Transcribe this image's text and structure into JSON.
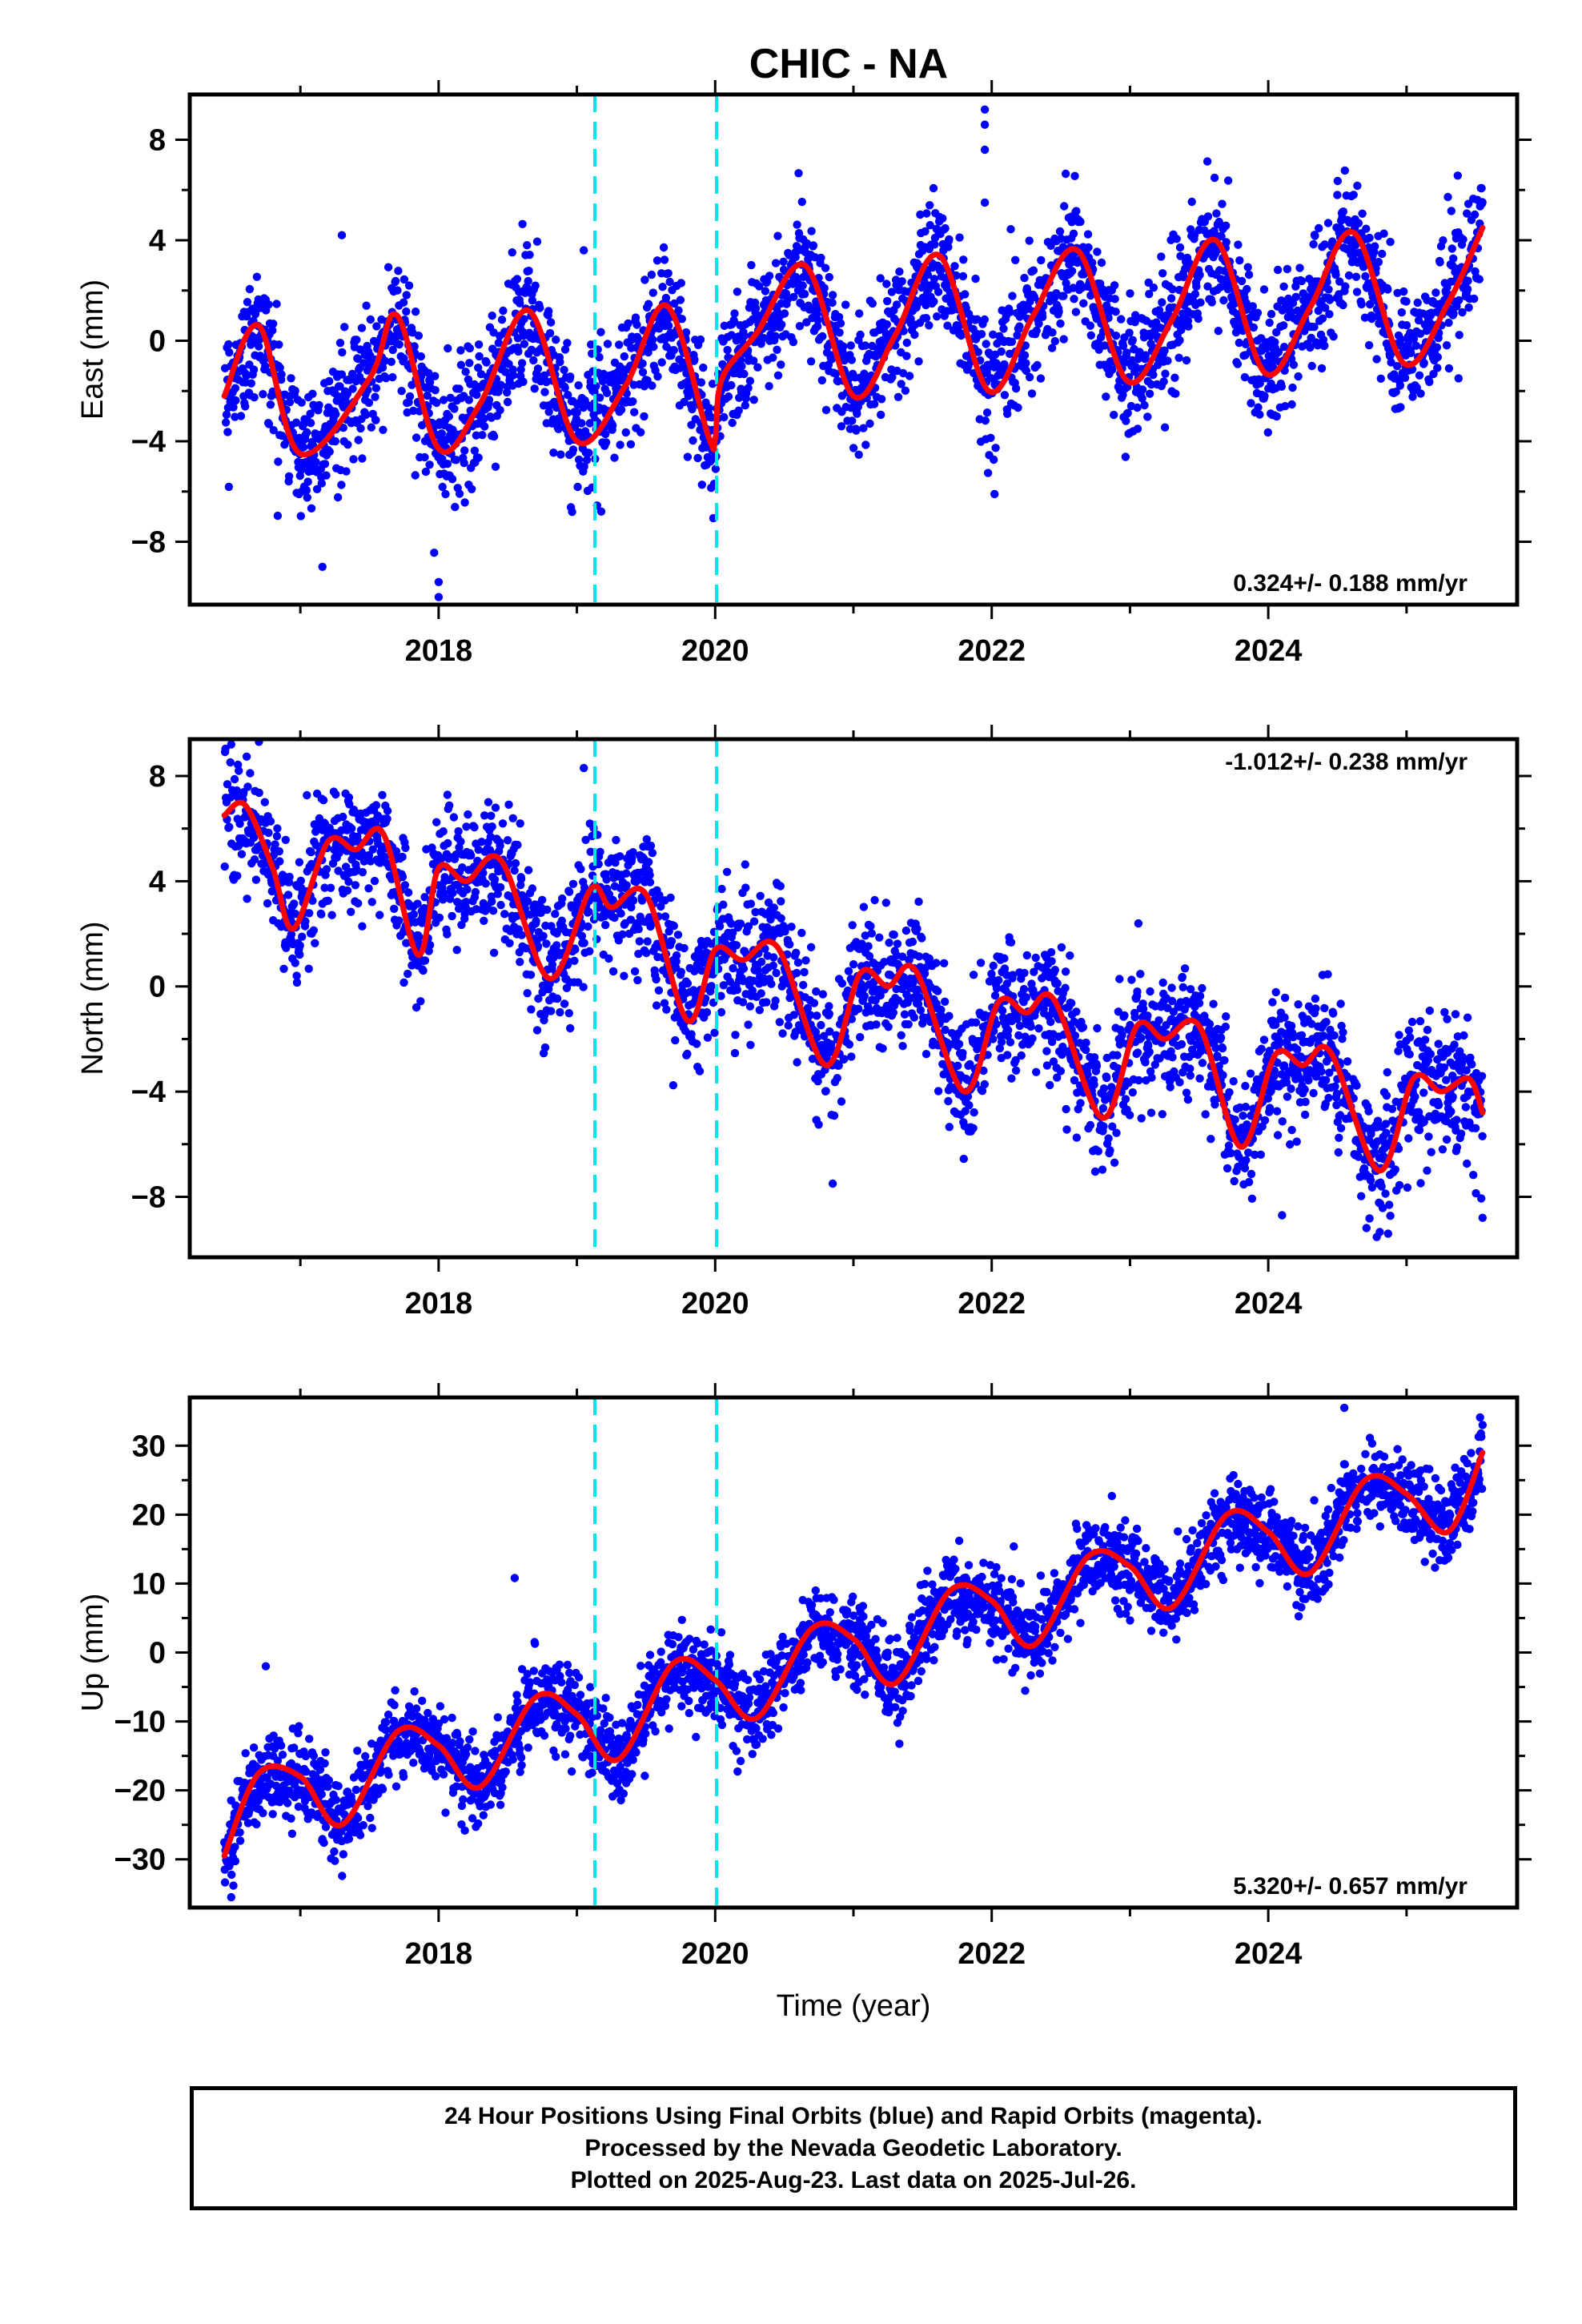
{
  "chart_data": [
    {
      "type": "scatter",
      "title": "CHIC - NA",
      "ylabel": "East (mm)",
      "xlabel": "",
      "xlim": [
        2016.2,
        2025.8
      ],
      "ylim": [
        -10.5,
        9.8
      ],
      "x_ticks": [
        2018,
        2020,
        2022,
        2024
      ],
      "y_ticks": [
        -8,
        -4,
        0,
        4,
        8
      ],
      "y_tick_labels": [
        "−8",
        "−4",
        "0",
        "4",
        "8"
      ],
      "rate_label": "0.324+/- 0.188 mm/yr",
      "rate_position": "bottom-right",
      "reference_lines_x": [
        2019.13,
        2020.01
      ],
      "trend": {
        "start": 2016.45,
        "value_at_start": -2.2,
        "rate": 0.324
      },
      "seasonal_amplitude": 2.6,
      "seasonal_phase_peak": 0.62,
      "scatter": 1.3,
      "model_points": [
        [
          2016.45,
          -2.2
        ],
        [
          2016.7,
          0.6
        ],
        [
          2017.0,
          -4.5
        ],
        [
          2017.5,
          -1.5
        ],
        [
          2017.7,
          1.0
        ],
        [
          2018.0,
          -4.3
        ],
        [
          2018.3,
          -2.5
        ],
        [
          2018.65,
          1.2
        ],
        [
          2019.0,
          -4.0
        ],
        [
          2019.35,
          -1.8
        ],
        [
          2019.65,
          1.4
        ],
        [
          2019.95,
          -3.8
        ],
        [
          2020.0,
          -3.9
        ],
        [
          2020.05,
          -1.5
        ],
        [
          2020.3,
          0.3
        ],
        [
          2020.65,
          3.0
        ],
        [
          2021.0,
          -2.2
        ],
        [
          2021.3,
          0.2
        ],
        [
          2021.62,
          3.4
        ],
        [
          2021.98,
          -2.0
        ],
        [
          2022.3,
          1.0
        ],
        [
          2022.62,
          3.6
        ],
        [
          2022.98,
          -1.6
        ],
        [
          2023.3,
          0.8
        ],
        [
          2023.62,
          4.0
        ],
        [
          2023.98,
          -1.3
        ],
        [
          2024.3,
          1.3
        ],
        [
          2024.62,
          4.3
        ],
        [
          2024.98,
          -0.9
        ],
        [
          2025.3,
          1.5
        ],
        [
          2025.55,
          4.5
        ]
      ],
      "point_color": "#0000ff",
      "model_color": "#ff0000",
      "reference_line_color": "#00e5ee",
      "outliers": [
        [
          2021.95,
          9.2
        ],
        [
          2021.95,
          8.6
        ],
        [
          2021.95,
          7.6
        ],
        [
          2021.95,
          5.5
        ],
        [
          2018.0,
          -9.6
        ],
        [
          2018.0,
          -10.2
        ],
        [
          2019.05,
          3.6
        ],
        [
          2022.02,
          -6.1
        ],
        [
          2017.3,
          4.2
        ]
      ]
    },
    {
      "type": "scatter",
      "title": "",
      "ylabel": "North (mm)",
      "xlabel": "",
      "xlim": [
        2016.2,
        2025.8
      ],
      "ylim": [
        -10.3,
        9.4
      ],
      "x_ticks": [
        2018,
        2020,
        2022,
        2024
      ],
      "y_ticks": [
        -8,
        -4,
        0,
        4,
        8
      ],
      "y_tick_labels": [
        "−8",
        "−4",
        "0",
        "4",
        "8"
      ],
      "rate_label": "-1.012+/- 0.238 mm/yr",
      "rate_position": "top-right",
      "reference_lines_x": [
        2019.13,
        2020.01
      ],
      "trend": {
        "start": 2016.45,
        "value_at_start": 6.5,
        "rate": -1.012
      },
      "seasonal_amplitude": 1.8,
      "seasonal_phase_peak": 0.45,
      "scatter": 1.2,
      "model_points": [
        [
          2016.45,
          6.5
        ],
        [
          2016.6,
          6.9
        ],
        [
          2016.8,
          4.5
        ],
        [
          2016.95,
          2.2
        ],
        [
          2017.2,
          5.5
        ],
        [
          2017.4,
          5.2
        ],
        [
          2017.6,
          5.8
        ],
        [
          2017.85,
          1.2
        ],
        [
          2018.0,
          4.5
        ],
        [
          2018.2,
          4.0
        ],
        [
          2018.45,
          4.8
        ],
        [
          2018.8,
          0.3
        ],
        [
          2019.1,
          3.7
        ],
        [
          2019.25,
          3.0
        ],
        [
          2019.5,
          3.5
        ],
        [
          2019.8,
          -1.3
        ],
        [
          2020.0,
          1.4
        ],
        [
          2020.2,
          1.0
        ],
        [
          2020.45,
          1.5
        ],
        [
          2020.8,
          -3.0
        ],
        [
          2021.05,
          0.5
        ],
        [
          2021.25,
          0.0
        ],
        [
          2021.45,
          0.6
        ],
        [
          2021.8,
          -4.0
        ],
        [
          2022.05,
          -0.6
        ],
        [
          2022.25,
          -1.0
        ],
        [
          2022.45,
          -0.5
        ],
        [
          2022.8,
          -5.0
        ],
        [
          2023.05,
          -1.5
        ],
        [
          2023.25,
          -2.0
        ],
        [
          2023.5,
          -1.5
        ],
        [
          2023.8,
          -6.1
        ],
        [
          2024.05,
          -2.6
        ],
        [
          2024.25,
          -3.0
        ],
        [
          2024.45,
          -2.5
        ],
        [
          2024.8,
          -7.0
        ],
        [
          2025.05,
          -3.5
        ],
        [
          2025.25,
          -4.0
        ],
        [
          2025.45,
          -3.5
        ],
        [
          2025.55,
          -4.8
        ]
      ],
      "point_color": "#0000ff",
      "model_color": "#ff0000",
      "reference_line_color": "#00e5ee",
      "outliers": [
        [
          2016.5,
          9.2
        ],
        [
          2016.7,
          9.3
        ],
        [
          2019.05,
          8.3
        ],
        [
          2020.85,
          -7.5
        ],
        [
          2024.1,
          -8.7
        ],
        [
          2025.55,
          -8.8
        ]
      ]
    },
    {
      "type": "scatter",
      "title": "",
      "ylabel": "Up (mm)",
      "xlabel": "Time (year)",
      "xlim": [
        2016.2,
        2025.8
      ],
      "ylim": [
        -37,
        37
      ],
      "x_ticks": [
        2018,
        2020,
        2022,
        2024
      ],
      "y_ticks": [
        -30,
        -20,
        -10,
        0,
        10,
        20,
        30
      ],
      "y_tick_labels": [
        "−30",
        "−20",
        "−10",
        "0",
        "10",
        "20",
        "30"
      ],
      "rate_label": "5.320+/- 0.657 mm/yr",
      "rate_position": "bottom-right",
      "reference_lines_x": [
        2019.13,
        2020.01
      ],
      "trend": {
        "start": 2016.45,
        "value_at_start": -29.0,
        "rate": 5.32
      },
      "seasonal_amplitude": 5.5,
      "seasonal_phase_peak": 0.6,
      "scatter": 3.0,
      "model_points": [
        [
          2016.45,
          -29.5
        ],
        [
          2016.7,
          -17.5
        ],
        [
          2017.0,
          -18.0
        ],
        [
          2017.3,
          -25.0
        ],
        [
          2017.7,
          -11.5
        ],
        [
          2018.0,
          -13.5
        ],
        [
          2018.3,
          -19.5
        ],
        [
          2018.7,
          -6.5
        ],
        [
          2019.0,
          -9.0
        ],
        [
          2019.3,
          -15.5
        ],
        [
          2019.7,
          -1.5
        ],
        [
          2020.0,
          -4.0
        ],
        [
          2020.3,
          -9.5
        ],
        [
          2020.7,
          3.5
        ],
        [
          2021.0,
          2.0
        ],
        [
          2021.3,
          -4.5
        ],
        [
          2021.7,
          9.0
        ],
        [
          2022.0,
          7.5
        ],
        [
          2022.3,
          1.0
        ],
        [
          2022.7,
          14.0
        ],
        [
          2023.0,
          12.5
        ],
        [
          2023.3,
          6.5
        ],
        [
          2023.7,
          20.0
        ],
        [
          2024.0,
          17.5
        ],
        [
          2024.3,
          11.5
        ],
        [
          2024.7,
          25.0
        ],
        [
          2025.0,
          23.0
        ],
        [
          2025.3,
          17.5
        ],
        [
          2025.55,
          29.0
        ]
      ],
      "point_color": "#0000ff",
      "model_color": "#ff0000",
      "reference_line_color": "#00e5ee",
      "outliers": [
        [
          2016.5,
          -35.5
        ],
        [
          2018.55,
          10.8
        ],
        [
          2016.75,
          -2.0
        ],
        [
          2025.55,
          33.0
        ],
        [
          2024.55,
          35.5
        ]
      ]
    }
  ],
  "footer": {
    "line1": "24 Hour Positions Using Final Orbits (blue) and Rapid Orbits (magenta).",
    "line2": "Processed by the Nevada Geodetic Laboratory.",
    "line3": "Plotted on 2025-Aug-23. Last data on 2025-Jul-26."
  }
}
